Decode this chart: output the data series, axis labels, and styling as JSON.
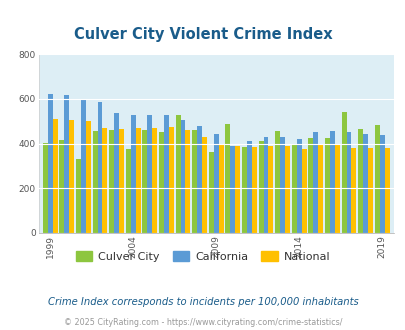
{
  "title": "Culver City Violent Crime Index",
  "title_color": "#1a5c8a",
  "background_color": "#ddeef5",
  "outer_bg": "#ffffff",
  "years": [
    1999,
    2000,
    2001,
    2002,
    2003,
    2004,
    2005,
    2006,
    2007,
    2008,
    2009,
    2010,
    2011,
    2012,
    2013,
    2014,
    2015,
    2016,
    2017,
    2018,
    2019
  ],
  "culver_city": [
    403,
    418,
    330,
    455,
    460,
    375,
    460,
    450,
    530,
    460,
    360,
    490,
    385,
    413,
    455,
    400,
    425,
    425,
    540,
    465,
    482
  ],
  "california": [
    622,
    618,
    595,
    585,
    535,
    530,
    530,
    530,
    505,
    480,
    445,
    390,
    413,
    430,
    430,
    420,
    450,
    455,
    450,
    445,
    440
  ],
  "national": [
    510,
    505,
    500,
    470,
    465,
    470,
    470,
    475,
    460,
    430,
    400,
    390,
    385,
    388,
    390,
    375,
    395,
    400,
    380,
    380,
    380
  ],
  "ylim": [
    0,
    800
  ],
  "yticks": [
    0,
    200,
    400,
    600,
    800
  ],
  "xlabel_years": [
    1999,
    2004,
    2009,
    2014,
    2019
  ],
  "culver_color": "#8dc63f",
  "california_color": "#5b9bd5",
  "national_color": "#ffc000",
  "footnote": "Crime Index corresponds to incidents per 100,000 inhabitants",
  "copyright": "© 2025 CityRating.com - https://www.cityrating.com/crime-statistics/",
  "footnote_color": "#1a5c8a",
  "copyright_color": "#999999",
  "legend_labels": [
    "Culver City",
    "California",
    "National"
  ]
}
